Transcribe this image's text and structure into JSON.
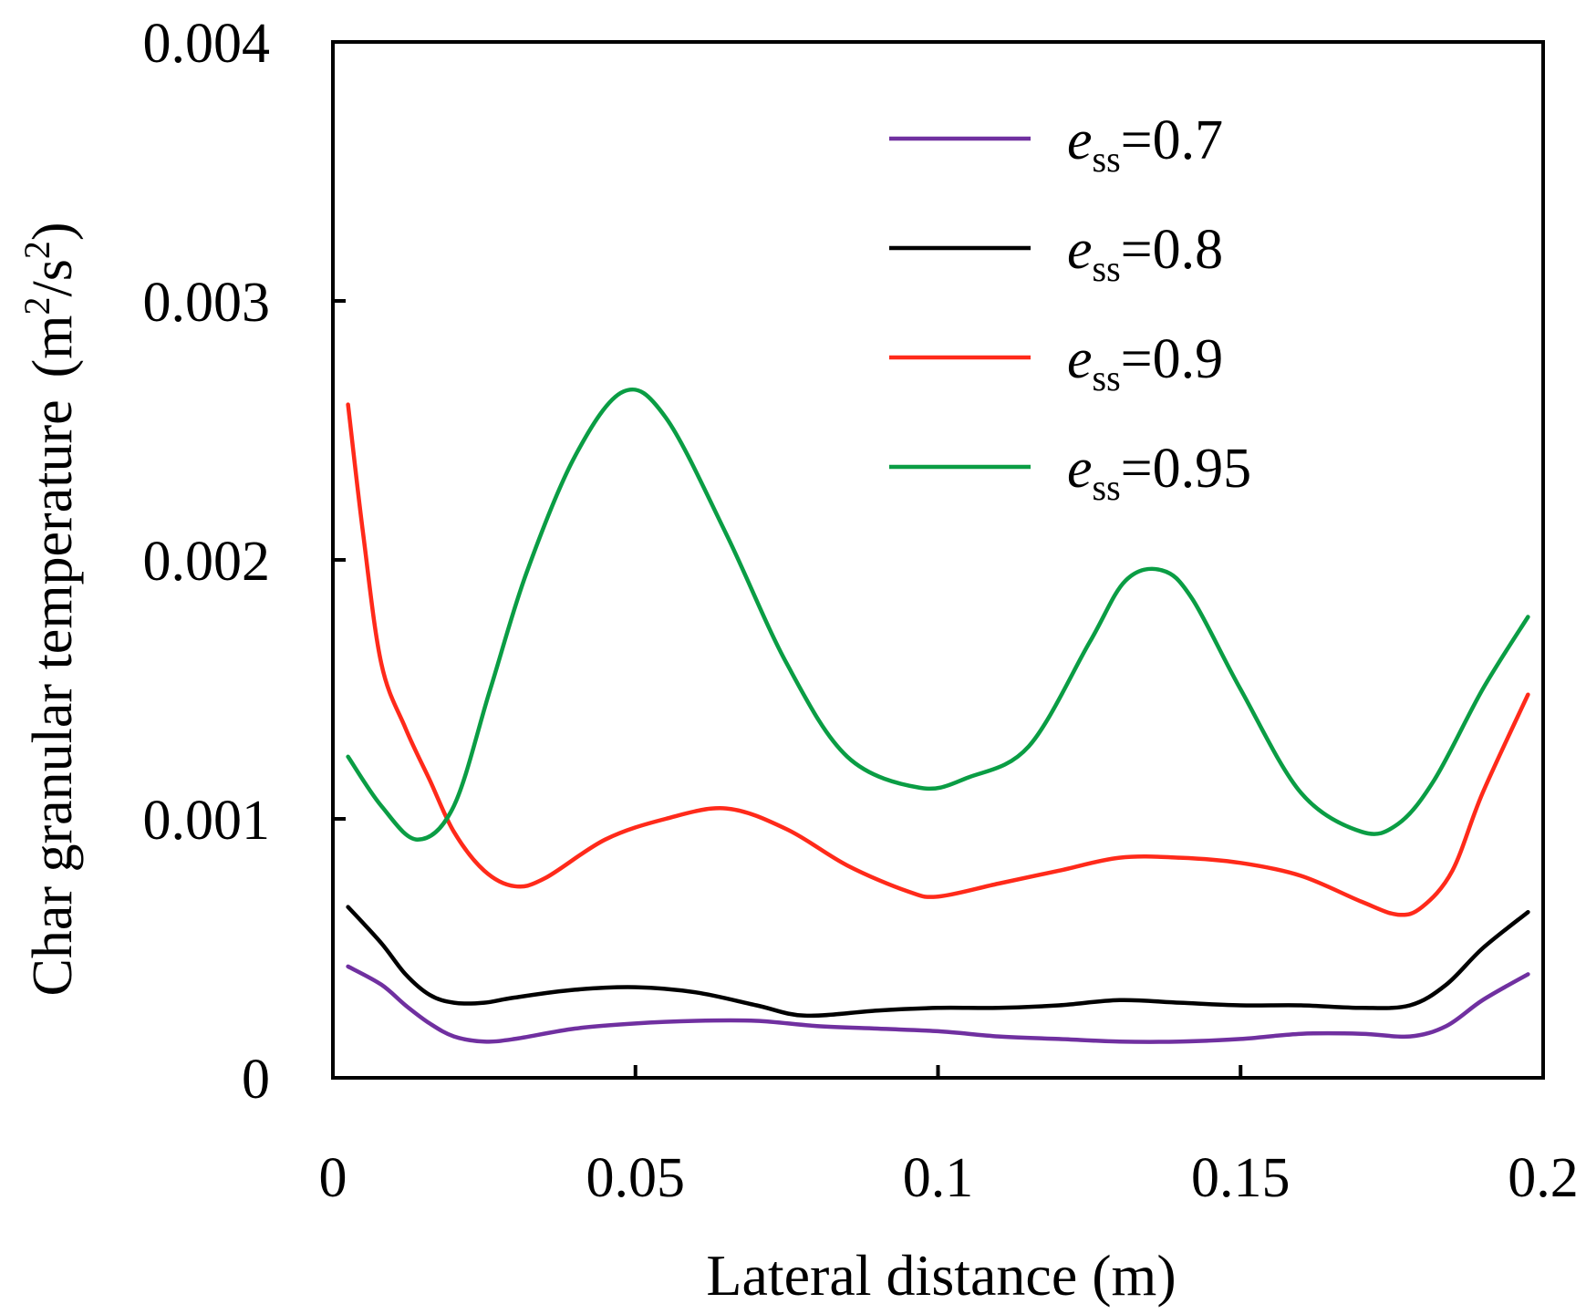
{
  "chart_data": {
    "type": "line",
    "title": "",
    "xlabel": "Lateral distance (m)",
    "ylabel": "Char granular temperature",
    "ylabel_unit": "(m2/s2)",
    "xlim": [
      0,
      0.2
    ],
    "ylim": [
      0,
      0.004
    ],
    "xticks": [
      0,
      0.05,
      0.1,
      0.15,
      0.2
    ],
    "xtick_labels": [
      "0",
      "0.05",
      "0.1",
      "0.15",
      "0.2"
    ],
    "yticks": [
      0,
      0.001,
      0.002,
      0.003,
      0.004
    ],
    "ytick_labels": [
      "0",
      "0.001",
      "0.002",
      "0.003",
      "0.004"
    ],
    "grid": false,
    "legend_position": "top-right",
    "legend_symbol": "e",
    "legend_subscript": "ss",
    "series": [
      {
        "name": "ess=0.7",
        "legend_value": "=0.7",
        "color": "#7030a0",
        "x": [
          0.0025,
          0.008,
          0.012,
          0.016,
          0.02,
          0.025,
          0.03,
          0.04,
          0.05,
          0.06,
          0.07,
          0.08,
          0.09,
          0.1,
          0.11,
          0.12,
          0.13,
          0.14,
          0.15,
          0.16,
          0.17,
          0.178,
          0.184,
          0.19,
          0.1975
        ],
        "y": [
          0.00043,
          0.00036,
          0.00028,
          0.00021,
          0.00016,
          0.00014,
          0.00015,
          0.00019,
          0.00021,
          0.00022,
          0.00022,
          0.0002,
          0.00019,
          0.00018,
          0.00016,
          0.00015,
          0.00014,
          0.00014,
          0.00015,
          0.00017,
          0.00017,
          0.00016,
          0.0002,
          0.0003,
          0.0004
        ]
      },
      {
        "name": "ess=0.8",
        "legend_value": "=0.8",
        "color": "#000000",
        "x": [
          0.0025,
          0.008,
          0.012,
          0.016,
          0.02,
          0.025,
          0.03,
          0.04,
          0.05,
          0.06,
          0.07,
          0.078,
          0.09,
          0.1,
          0.11,
          0.12,
          0.13,
          0.14,
          0.15,
          0.16,
          0.17,
          0.178,
          0.184,
          0.19,
          0.1975
        ],
        "y": [
          0.00066,
          0.00052,
          0.0004,
          0.00032,
          0.00029,
          0.00029,
          0.00031,
          0.00034,
          0.00035,
          0.00033,
          0.00028,
          0.00024,
          0.00026,
          0.00027,
          0.00027,
          0.00028,
          0.0003,
          0.00029,
          0.00028,
          0.00028,
          0.00027,
          0.00028,
          0.00036,
          0.0005,
          0.00064
        ]
      },
      {
        "name": "ess=0.9",
        "legend_value": "=0.9",
        "color": "#ff2a1a",
        "x": [
          0.0025,
          0.005,
          0.008,
          0.012,
          0.016,
          0.02,
          0.025,
          0.03,
          0.035,
          0.045,
          0.055,
          0.065,
          0.075,
          0.085,
          0.095,
          0.1,
          0.11,
          0.12,
          0.13,
          0.14,
          0.15,
          0.16,
          0.17,
          0.176,
          0.18,
          0.185,
          0.19,
          0.1975
        ],
        "y": [
          0.0026,
          0.0021,
          0.0016,
          0.00135,
          0.00115,
          0.00095,
          0.0008,
          0.00074,
          0.00077,
          0.00092,
          0.001,
          0.00104,
          0.00096,
          0.00082,
          0.00072,
          0.0007,
          0.00075,
          0.0008,
          0.00085,
          0.00085,
          0.00083,
          0.00078,
          0.00068,
          0.00063,
          0.00066,
          0.0008,
          0.0011,
          0.00148
        ]
      },
      {
        "name": "ess=0.95",
        "legend_value": "=0.95",
        "color": "#0a9d44",
        "x": [
          0.0025,
          0.008,
          0.014,
          0.02,
          0.026,
          0.032,
          0.04,
          0.048,
          0.055,
          0.065,
          0.075,
          0.085,
          0.097,
          0.105,
          0.115,
          0.125,
          0.131,
          0.137,
          0.142,
          0.15,
          0.16,
          0.17,
          0.176,
          0.182,
          0.19,
          0.1975
        ],
        "y": [
          0.00124,
          0.00105,
          0.00092,
          0.00105,
          0.0015,
          0.00195,
          0.0024,
          0.00265,
          0.00255,
          0.0021,
          0.0016,
          0.00124,
          0.00112,
          0.00116,
          0.00128,
          0.00168,
          0.00192,
          0.00196,
          0.00185,
          0.0015,
          0.0011,
          0.00095,
          0.00098,
          0.00115,
          0.0015,
          0.00178
        ]
      }
    ]
  }
}
